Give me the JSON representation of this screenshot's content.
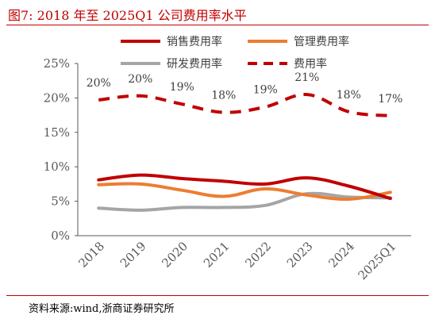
{
  "header": {
    "title": "图7:   2018 年至 2025Q1 公司费用率水平"
  },
  "footer": {
    "source": "资料来源:wind,浙商证券研究所"
  },
  "colors": {
    "title": "#c00000",
    "sales": "#c00000",
    "admin": "#ed7d31",
    "rnd": "#a5a5a5",
    "total": "#c00000",
    "axis": "#595959"
  },
  "chart_data": {
    "type": "line",
    "categories": [
      "2018",
      "2019",
      "2020",
      "2021",
      "2022",
      "2023",
      "2024",
      "2025Q1"
    ],
    "yticks": [
      "0%",
      "5%",
      "10%",
      "15%",
      "20%",
      "25%"
    ],
    "ylim": [
      0,
      25
    ],
    "legend_position": "top",
    "grid": false,
    "series": [
      {
        "name": "销售费用率",
        "key": "sales",
        "style": "solid",
        "values": [
          8.1,
          8.8,
          8.3,
          7.9,
          7.5,
          8.4,
          7.2,
          5.4
        ]
      },
      {
        "name": "管理费用率",
        "key": "admin",
        "style": "solid",
        "values": [
          7.4,
          7.5,
          6.6,
          5.7,
          6.8,
          5.9,
          5.3,
          6.3
        ]
      },
      {
        "name": "研发费用率",
        "key": "rnd",
        "style": "solid",
        "values": [
          4.0,
          3.7,
          4.1,
          4.1,
          4.4,
          6.1,
          5.6,
          5.5
        ]
      },
      {
        "name": "费用率",
        "key": "total",
        "style": "dashed",
        "values": [
          19.7,
          20.3,
          19.1,
          17.9,
          18.7,
          20.5,
          18.0,
          17.4
        ],
        "labels": [
          "20%",
          "20%",
          "19%",
          "18%",
          "19%",
          "21%",
          "18%",
          "17%"
        ]
      }
    ]
  }
}
